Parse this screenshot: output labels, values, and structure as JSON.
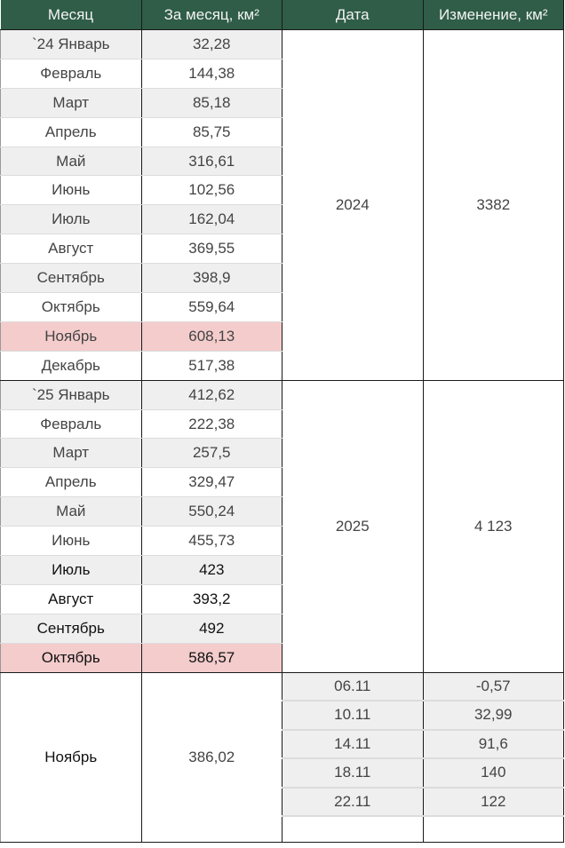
{
  "header": [
    "Месяц",
    "За месяц, км²",
    "Дата",
    "Изменение, км²"
  ],
  "colors": {
    "header_bg": "#2f5d47",
    "highlight": "#f4cccc",
    "alt_row": "#efefef"
  },
  "blocks": [
    {
      "year": "2024",
      "change": "3382",
      "rows": [
        {
          "month": "`24 Январь",
          "value": "32,28"
        },
        {
          "month": "Февраль",
          "value": "144,38"
        },
        {
          "month": "Март",
          "value": "85,18"
        },
        {
          "month": "Апрель",
          "value": "85,75"
        },
        {
          "month": "Май",
          "value": "316,61"
        },
        {
          "month": "Июнь",
          "value": "102,56"
        },
        {
          "month": "Июль",
          "value": "162,04"
        },
        {
          "month": "Август",
          "value": "369,55"
        },
        {
          "month": "Сентябрь",
          "value": "398,9"
        },
        {
          "month": "Октябрь",
          "value": "559,64"
        },
        {
          "month": "Ноябрь",
          "value": "608,13",
          "highlight": true
        },
        {
          "month": "Декабрь",
          "value": "517,38"
        }
      ]
    },
    {
      "year": "2025",
      "change": "4 123",
      "rows": [
        {
          "month": "`25 Январь",
          "value": "412,62"
        },
        {
          "month": "Февраль",
          "value": "222,38"
        },
        {
          "month": "Март",
          "value": "257,5"
        },
        {
          "month": "Апрель",
          "value": "329,47"
        },
        {
          "month": "Май",
          "value": "550,24"
        },
        {
          "month": "Июнь",
          "value": "455,73"
        },
        {
          "month": "Июль",
          "value": "423",
          "bold": true
        },
        {
          "month": "Август",
          "value": "393,2",
          "bold": true
        },
        {
          "month": "Сентябрь",
          "value": "492",
          "bold": true
        },
        {
          "month": "Октябрь",
          "value": "586,57",
          "highlight": true,
          "bold": true
        }
      ]
    }
  ],
  "november": {
    "month": "Ноябрь",
    "value": "386,02",
    "dates": [
      {
        "date": "06.11",
        "change": "-0,57"
      },
      {
        "date": "10.11",
        "change": "32,99"
      },
      {
        "date": "14.11",
        "change": "91,6"
      },
      {
        "date": "18.11",
        "change": "140"
      },
      {
        "date": "22.11",
        "change": "122"
      }
    ]
  }
}
